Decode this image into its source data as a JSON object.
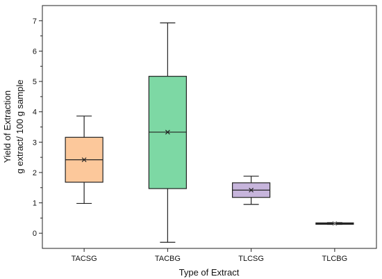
{
  "chart_data": {
    "type": "box",
    "xlabel": "Type of Extract",
    "ylabel": [
      "Yield of Extraction",
      "g extract/ 100 g sample"
    ],
    "ylim": [
      -0.5,
      7.5
    ],
    "yticks": [
      0,
      1,
      2,
      3,
      4,
      5,
      6,
      7
    ],
    "categories": [
      "TACSG",
      "TACBG",
      "TLCSG",
      "TLCBG"
    ],
    "boxes": [
      {
        "name": "TACSG",
        "min": 0.98,
        "q1": 1.68,
        "median": 2.42,
        "mean": 2.42,
        "q3": 3.16,
        "max": 3.86,
        "color": "#fcc89b"
      },
      {
        "name": "TACBG",
        "min": -0.3,
        "q1": 1.47,
        "median": 3.33,
        "mean": 3.33,
        "q3": 5.17,
        "max": 6.93,
        "color": "#7dd8a4"
      },
      {
        "name": "TLCSG",
        "min": 0.95,
        "q1": 1.18,
        "median": 1.42,
        "mean": 1.42,
        "q3": 1.66,
        "max": 1.88,
        "color": "#c7b5dc"
      },
      {
        "name": "TLCBG",
        "min": 0.29,
        "q1": 0.3,
        "median": 0.32,
        "mean": 0.32,
        "q3": 0.34,
        "max": 0.35,
        "color": "#222222"
      }
    ],
    "grid": false,
    "legend": "none"
  }
}
